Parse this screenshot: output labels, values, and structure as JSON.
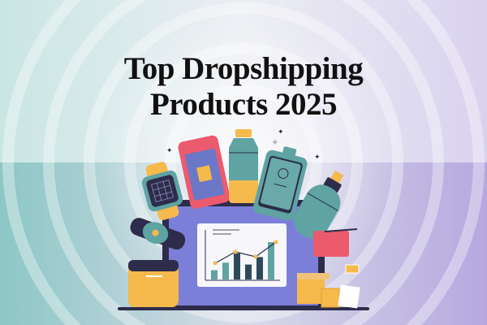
{
  "title": {
    "line1": "Top Dropshipping",
    "line2": "Products 2025"
  },
  "colors": {
    "background_left": "#a9d6d4",
    "background_right": "#c8bde6",
    "title": "#111111",
    "laptop_screen": "#7c7fd8",
    "accent_teal": "#5fa3a3",
    "accent_yellow": "#f5b94c",
    "accent_pink": "#ec5a6e"
  },
  "illustration": {
    "items": [
      "smartwatch-icon",
      "smartphone-icon",
      "water-bottle-icon",
      "tablet-icon",
      "spray-bottle-icon",
      "fitness-tracker-icon",
      "bag-icon",
      "case-icon",
      "shipping-box-icon",
      "receipt-icon",
      "laptop-icon",
      "growth-chart-icon"
    ],
    "chart_bars": [
      0.25,
      0.45,
      0.7,
      0.4,
      0.6,
      1.0
    ],
    "chart_line": [
      0.35,
      0.7,
      0.55,
      1.0
    ]
  }
}
